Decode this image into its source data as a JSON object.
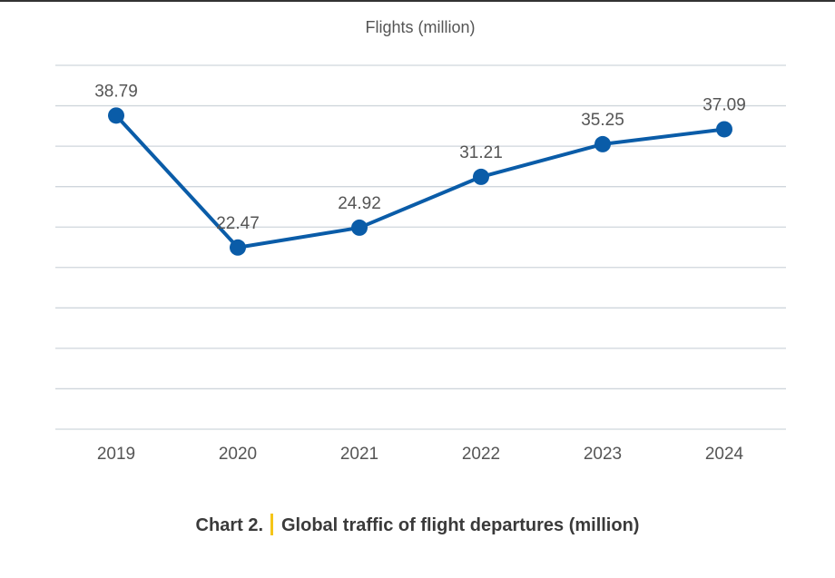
{
  "chart_data": {
    "type": "line",
    "title": "Flights (million)",
    "categories": [
      "2019",
      "2020",
      "2021",
      "2022",
      "2023",
      "2024"
    ],
    "series": [
      {
        "values": [
          38.79,
          22.47,
          24.92,
          31.21,
          35.25,
          37.09
        ]
      }
    ],
    "data_labels": [
      "38.79",
      "22.47",
      "24.92",
      "31.21",
      "35.25",
      "37.09"
    ],
    "ylim": [
      0,
      45
    ],
    "grid": true,
    "colors": {
      "line": "#0a5ca8",
      "grid": "#cfd6dc",
      "text": "#555555"
    }
  },
  "caption": {
    "label": "Chart 2.",
    "text": "Global traffic of flight departures (million)",
    "separator_color": "#f5c518"
  }
}
